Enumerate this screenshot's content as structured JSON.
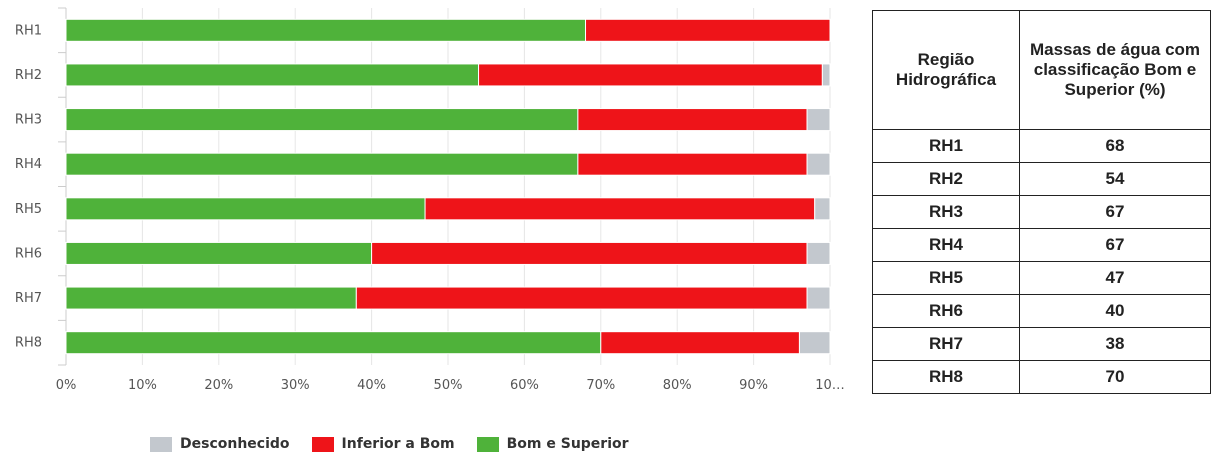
{
  "chart_data": {
    "type": "bar",
    "orientation": "horizontal",
    "stacked": true,
    "categories": [
      "RH1",
      "RH2",
      "RH3",
      "RH4",
      "RH5",
      "RH6",
      "RH7",
      "RH8"
    ],
    "series": [
      {
        "name": "Bom e Superior",
        "color": "#4fb23a",
        "values": [
          68,
          54,
          67,
          67,
          47,
          40,
          38,
          70
        ]
      },
      {
        "name": "Inferior a Bom",
        "color": "#ee1419",
        "values": [
          32,
          45,
          30,
          30,
          51,
          57,
          59,
          26
        ]
      },
      {
        "name": "Desconhecido",
        "color": "#c3c8ce",
        "values": [
          0,
          1,
          3,
          3,
          2,
          3,
          3,
          4
        ]
      }
    ],
    "x_ticks": [
      "0%",
      "10%",
      "20%",
      "30%",
      "40%",
      "50%",
      "60%",
      "70%",
      "80%",
      "90%",
      "10…"
    ],
    "xlim": [
      0,
      100
    ],
    "legend_order": [
      "Desconhecido",
      "Inferior a Bom",
      "Bom e Superior"
    ],
    "legend_position": "bottom",
    "grid": true
  },
  "table": {
    "headers": [
      "Região Hidrográfica",
      "Massas de água com classificação Bom e Superior (%)"
    ],
    "rows": [
      [
        "RH1",
        "68"
      ],
      [
        "RH2",
        "54"
      ],
      [
        "RH3",
        "67"
      ],
      [
        "RH4",
        "67"
      ],
      [
        "RH5",
        "47"
      ],
      [
        "RH6",
        "40"
      ],
      [
        "RH7",
        "38"
      ],
      [
        "RH8",
        "70"
      ]
    ]
  }
}
